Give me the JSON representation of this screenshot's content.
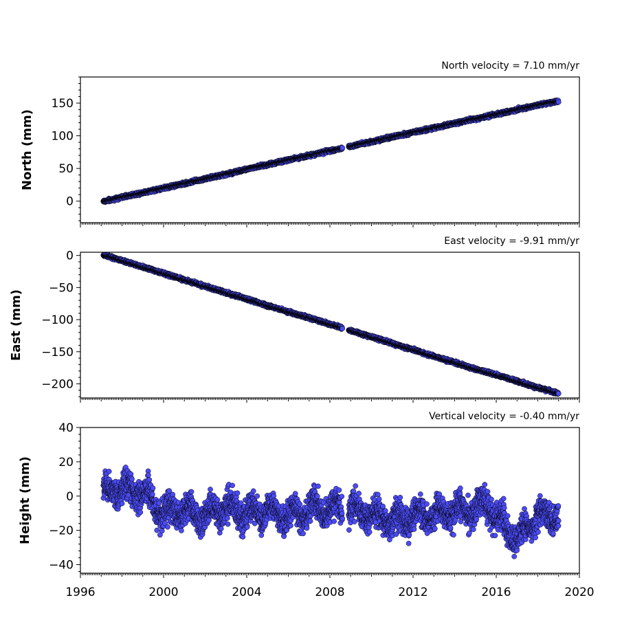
{
  "chart_data": [
    {
      "type": "scatter",
      "title": "North velocity = 7.10 mm/yr",
      "xlabel": "",
      "ylabel": "North (mm)",
      "xlim": [
        1996,
        2020
      ],
      "ylim": [
        -33,
        190
      ],
      "y_ticks": [
        "0",
        "50",
        "100",
        "150"
      ],
      "y_tick_values": [
        0,
        50,
        100,
        150
      ],
      "marker_color": "#4b4bf5",
      "velocity_mm_per_yr": 7.1,
      "start_year": 1997.1,
      "end_year": 2019.0,
      "data_gap": [
        2008.6,
        2008.9
      ],
      "series": [
        {
          "x": [
            1997.2,
            1998.0,
            1999.0,
            2000.0,
            2001.0,
            2002.0,
            2003.0,
            2004.0,
            2005.0,
            2006.0,
            2007.0,
            2008.0,
            2008.5,
            2009.0,
            2010.0,
            2011.0,
            2012.0,
            2013.0,
            2014.0,
            2015.0,
            2016.0,
            2017.0,
            2018.0,
            2019.0
          ],
          "y": [
            0,
            6,
            13,
            20,
            27,
            34,
            41,
            49,
            56,
            63,
            70,
            77,
            80,
            84,
            91,
            98,
            105,
            112,
            119,
            126,
            133,
            140,
            147,
            153
          ]
        }
      ]
    },
    {
      "type": "scatter",
      "title": "East velocity = -9.91 mm/yr",
      "xlabel": "",
      "ylabel": "East (mm)",
      "xlim": [
        1996,
        2020
      ],
      "ylim": [
        -222,
        5
      ],
      "y_ticks": [
        "0",
        "−50",
        "−100",
        "−150",
        "−200"
      ],
      "y_tick_values": [
        0,
        -50,
        -100,
        -150,
        -200
      ],
      "marker_color": "#4b4bf5",
      "velocity_mm_per_yr": -9.91,
      "start_year": 1997.1,
      "end_year": 2019.0,
      "data_gap": [
        2008.6,
        2008.9
      ],
      "series": [
        {
          "x": [
            1997.2,
            1998.0,
            1999.0,
            2000.0,
            2001.0,
            2002.0,
            2003.0,
            2004.0,
            2005.0,
            2006.0,
            2007.0,
            2008.0,
            2008.5,
            2009.0,
            2010.0,
            2011.0,
            2012.0,
            2013.0,
            2014.0,
            2015.0,
            2016.0,
            2017.0,
            2018.0,
            2019.0
          ],
          "y": [
            0,
            -8,
            -18,
            -28,
            -38,
            -48,
            -58,
            -68,
            -78,
            -88,
            -97,
            -107,
            -112,
            -117,
            -127,
            -137,
            -147,
            -157,
            -167,
            -177,
            -186,
            -196,
            -206,
            -215
          ]
        }
      ]
    },
    {
      "type": "scatter",
      "title": "Vertical velocity = -0.40 mm/yr",
      "xlabel": "",
      "ylabel": "Height (mm)",
      "xlim": [
        1996,
        2020
      ],
      "ylim": [
        -45,
        40
      ],
      "y_ticks": [
        "−40",
        "−20",
        "0",
        "20",
        "40"
      ],
      "y_tick_values": [
        -40,
        -20,
        0,
        20,
        40
      ],
      "marker_color": "#4b4bf5",
      "velocity_mm_per_yr": -0.4,
      "start_year": 1997.1,
      "end_year": 2019.0,
      "data_gap": [
        2008.6,
        2008.9
      ],
      "series": [
        {
          "x": [
            1997.2,
            1998.0,
            1998.8,
            1999.3,
            2000.0,
            2001.0,
            2002.0,
            2003.0,
            2004.0,
            2005.0,
            2006.0,
            2007.0,
            2008.0,
            2009.0,
            2010.0,
            2011.0,
            2012.0,
            2013.0,
            2014.0,
            2015.0,
            2015.5,
            2016.0,
            2017.0,
            2018.0,
            2019.0
          ],
          "y": [
            2,
            4,
            3,
            0,
            -10,
            -8,
            -12,
            -7,
            -10,
            -9,
            -12,
            -8,
            -7,
            -8,
            -11,
            -14,
            -12,
            -11,
            -9,
            -8,
            -3,
            -12,
            -25,
            -12,
            -10
          ]
        }
      ]
    }
  ],
  "x_ticks": [
    "1996",
    "2000",
    "2004",
    "2008",
    "2012",
    "2016",
    "2020"
  ],
  "x_tick_values": [
    1996,
    2000,
    2004,
    2008,
    2012,
    2016,
    2020
  ]
}
